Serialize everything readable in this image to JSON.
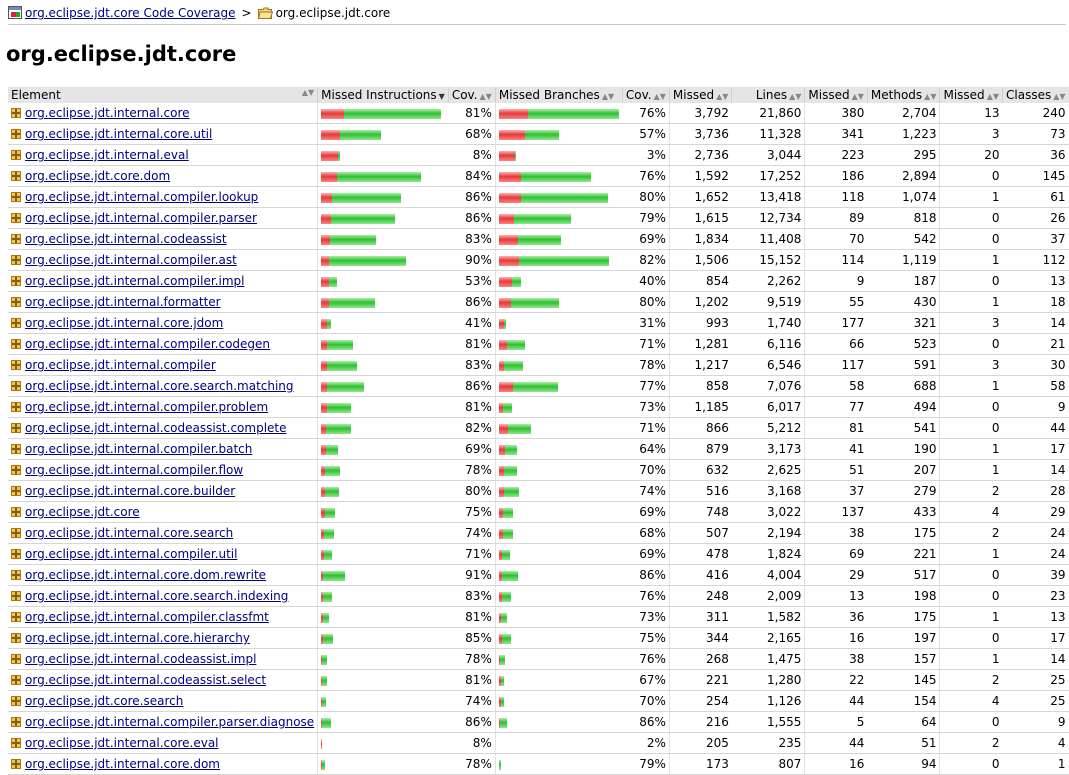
{
  "breadcrumb": {
    "root_label": "org.eclipse.jdt.core Code Coverage",
    "separator": ">",
    "current_label": "org.eclipse.jdt.core"
  },
  "page_title": "org.eclipse.jdt.core",
  "table": {
    "headers": {
      "element": "Element",
      "missed_instructions": "Missed Instructions",
      "instr_cov": "Cov.",
      "missed_branches": "Missed Branches",
      "branch_cov": "Cov.",
      "missed_lines": "Missed",
      "lines": "Lines",
      "missed_methods": "Missed",
      "methods": "Methods",
      "missed_classes": "Missed",
      "classes": "Classes"
    },
    "sort_icons": {
      "ascending_descending": "sort-icon",
      "active_descending": "sort-desc-icon"
    },
    "colors": {
      "missed": "#e23a3a",
      "covered": "#2fbf2f"
    },
    "rows": [
      {
        "name": "org.eclipse.jdt.internal.core",
        "instr_cov": "81%",
        "instr_cov_frac": 0.81,
        "instr_scale": 1.0,
        "branch_cov": "76%",
        "branch_cov_frac": 0.76,
        "branch_scale": 1.0,
        "missed_lines": "3,792",
        "lines": "21,860",
        "missed_methods": "380",
        "methods": "2,704",
        "missed_classes": "13",
        "classes": "240"
      },
      {
        "name": "org.eclipse.jdt.internal.core.util",
        "instr_cov": "68%",
        "instr_cov_frac": 0.68,
        "instr_scale": 0.5,
        "branch_cov": "57%",
        "branch_cov_frac": 0.57,
        "branch_scale": 0.5,
        "missed_lines": "3,736",
        "lines": "11,328",
        "missed_methods": "341",
        "methods": "1,223",
        "missed_classes": "3",
        "classes": "73"
      },
      {
        "name": "org.eclipse.jdt.internal.eval",
        "instr_cov": "8%",
        "instr_cov_frac": 0.08,
        "instr_scale": 0.16,
        "branch_cov": "3%",
        "branch_cov_frac": 0.03,
        "branch_scale": 0.14,
        "missed_lines": "2,736",
        "lines": "3,044",
        "missed_methods": "223",
        "methods": "295",
        "missed_classes": "20",
        "classes": "36"
      },
      {
        "name": "org.eclipse.jdt.core.dom",
        "instr_cov": "84%",
        "instr_cov_frac": 0.84,
        "instr_scale": 0.83,
        "branch_cov": "76%",
        "branch_cov_frac": 0.76,
        "branch_scale": 0.77,
        "missed_lines": "1,592",
        "lines": "17,252",
        "missed_methods": "186",
        "methods": "2,894",
        "missed_classes": "0",
        "classes": "145"
      },
      {
        "name": "org.eclipse.jdt.internal.compiler.lookup",
        "instr_cov": "86%",
        "instr_cov_frac": 0.86,
        "instr_scale": 0.67,
        "branch_cov": "80%",
        "branch_cov_frac": 0.8,
        "branch_scale": 0.91,
        "missed_lines": "1,652",
        "lines": "13,418",
        "missed_methods": "118",
        "methods": "1,074",
        "missed_classes": "1",
        "classes": "61"
      },
      {
        "name": "org.eclipse.jdt.internal.compiler.parser",
        "instr_cov": "86%",
        "instr_cov_frac": 0.86,
        "instr_scale": 0.62,
        "branch_cov": "79%",
        "branch_cov_frac": 0.79,
        "branch_scale": 0.6,
        "missed_lines": "1,615",
        "lines": "12,734",
        "missed_methods": "89",
        "methods": "818",
        "missed_classes": "0",
        "classes": "26"
      },
      {
        "name": "org.eclipse.jdt.internal.codeassist",
        "instr_cov": "83%",
        "instr_cov_frac": 0.83,
        "instr_scale": 0.46,
        "branch_cov": "69%",
        "branch_cov_frac": 0.69,
        "branch_scale": 0.52,
        "missed_lines": "1,834",
        "lines": "11,408",
        "missed_methods": "70",
        "methods": "542",
        "missed_classes": "0",
        "classes": "37"
      },
      {
        "name": "org.eclipse.jdt.internal.compiler.ast",
        "instr_cov": "90%",
        "instr_cov_frac": 0.9,
        "instr_scale": 0.71,
        "branch_cov": "82%",
        "branch_cov_frac": 0.82,
        "branch_scale": 0.92,
        "missed_lines": "1,506",
        "lines": "15,152",
        "missed_methods": "114",
        "methods": "1,119",
        "missed_classes": "1",
        "classes": "112"
      },
      {
        "name": "org.eclipse.jdt.internal.compiler.impl",
        "instr_cov": "53%",
        "instr_cov_frac": 0.53,
        "instr_scale": 0.13,
        "branch_cov": "40%",
        "branch_cov_frac": 0.4,
        "branch_scale": 0.18,
        "missed_lines": "854",
        "lines": "2,262",
        "missed_methods": "9",
        "methods": "187",
        "missed_classes": "0",
        "classes": "13"
      },
      {
        "name": "org.eclipse.jdt.internal.formatter",
        "instr_cov": "86%",
        "instr_cov_frac": 0.86,
        "instr_scale": 0.45,
        "branch_cov": "80%",
        "branch_cov_frac": 0.8,
        "branch_scale": 0.5,
        "missed_lines": "1,202",
        "lines": "9,519",
        "missed_methods": "55",
        "methods": "430",
        "missed_classes": "1",
        "classes": "18"
      },
      {
        "name": "org.eclipse.jdt.internal.core.jdom",
        "instr_cov": "41%",
        "instr_cov_frac": 0.41,
        "instr_scale": 0.08,
        "branch_cov": "31%",
        "branch_cov_frac": 0.31,
        "branch_scale": 0.06,
        "missed_lines": "993",
        "lines": "1,740",
        "missed_methods": "177",
        "methods": "321",
        "missed_classes": "3",
        "classes": "14"
      },
      {
        "name": "org.eclipse.jdt.internal.compiler.codegen",
        "instr_cov": "81%",
        "instr_cov_frac": 0.81,
        "instr_scale": 0.27,
        "branch_cov": "71%",
        "branch_cov_frac": 0.71,
        "branch_scale": 0.22,
        "missed_lines": "1,281",
        "lines": "6,116",
        "missed_methods": "66",
        "methods": "523",
        "missed_classes": "0",
        "classes": "21"
      },
      {
        "name": "org.eclipse.jdt.internal.compiler",
        "instr_cov": "83%",
        "instr_cov_frac": 0.83,
        "instr_scale": 0.3,
        "branch_cov": "78%",
        "branch_cov_frac": 0.78,
        "branch_scale": 0.2,
        "missed_lines": "1,217",
        "lines": "6,546",
        "missed_methods": "117",
        "methods": "591",
        "missed_classes": "3",
        "classes": "30"
      },
      {
        "name": "org.eclipse.jdt.internal.core.search.matching",
        "instr_cov": "86%",
        "instr_cov_frac": 0.86,
        "instr_scale": 0.36,
        "branch_cov": "77%",
        "branch_cov_frac": 0.77,
        "branch_scale": 0.49,
        "missed_lines": "858",
        "lines": "7,076",
        "missed_methods": "58",
        "methods": "688",
        "missed_classes": "1",
        "classes": "58"
      },
      {
        "name": "org.eclipse.jdt.internal.compiler.problem",
        "instr_cov": "81%",
        "instr_cov_frac": 0.81,
        "instr_scale": 0.25,
        "branch_cov": "73%",
        "branch_cov_frac": 0.73,
        "branch_scale": 0.11,
        "missed_lines": "1,185",
        "lines": "6,017",
        "missed_methods": "77",
        "methods": "494",
        "missed_classes": "0",
        "classes": "9"
      },
      {
        "name": "org.eclipse.jdt.internal.codeassist.complete",
        "instr_cov": "82%",
        "instr_cov_frac": 0.82,
        "instr_scale": 0.25,
        "branch_cov": "71%",
        "branch_cov_frac": 0.71,
        "branch_scale": 0.27,
        "missed_lines": "866",
        "lines": "5,212",
        "missed_methods": "81",
        "methods": "541",
        "missed_classes": "0",
        "classes": "44"
      },
      {
        "name": "org.eclipse.jdt.internal.compiler.batch",
        "instr_cov": "69%",
        "instr_cov_frac": 0.69,
        "instr_scale": 0.14,
        "branch_cov": "64%",
        "branch_cov_frac": 0.64,
        "branch_scale": 0.15,
        "missed_lines": "879",
        "lines": "3,173",
        "missed_methods": "41",
        "methods": "190",
        "missed_classes": "1",
        "classes": "17"
      },
      {
        "name": "org.eclipse.jdt.internal.compiler.flow",
        "instr_cov": "78%",
        "instr_cov_frac": 0.78,
        "instr_scale": 0.16,
        "branch_cov": "70%",
        "branch_cov_frac": 0.7,
        "branch_scale": 0.15,
        "missed_lines": "632",
        "lines": "2,625",
        "missed_methods": "51",
        "methods": "207",
        "missed_classes": "1",
        "classes": "14"
      },
      {
        "name": "org.eclipse.jdt.internal.core.builder",
        "instr_cov": "80%",
        "instr_cov_frac": 0.8,
        "instr_scale": 0.15,
        "branch_cov": "74%",
        "branch_cov_frac": 0.74,
        "branch_scale": 0.17,
        "missed_lines": "516",
        "lines": "3,168",
        "missed_methods": "37",
        "methods": "279",
        "missed_classes": "2",
        "classes": "28"
      },
      {
        "name": "org.eclipse.jdt.core",
        "instr_cov": "75%",
        "instr_cov_frac": 0.75,
        "instr_scale": 0.12,
        "branch_cov": "69%",
        "branch_cov_frac": 0.69,
        "branch_scale": 0.12,
        "missed_lines": "748",
        "lines": "3,022",
        "missed_methods": "137",
        "methods": "433",
        "missed_classes": "4",
        "classes": "29"
      },
      {
        "name": "org.eclipse.jdt.internal.core.search",
        "instr_cov": "74%",
        "instr_cov_frac": 0.74,
        "instr_scale": 0.11,
        "branch_cov": "68%",
        "branch_cov_frac": 0.68,
        "branch_scale": 0.12,
        "missed_lines": "507",
        "lines": "2,194",
        "missed_methods": "38",
        "methods": "175",
        "missed_classes": "2",
        "classes": "24"
      },
      {
        "name": "org.eclipse.jdt.internal.compiler.util",
        "instr_cov": "71%",
        "instr_cov_frac": 0.71,
        "instr_scale": 0.09,
        "branch_cov": "69%",
        "branch_cov_frac": 0.69,
        "branch_scale": 0.09,
        "missed_lines": "478",
        "lines": "1,824",
        "missed_methods": "69",
        "methods": "221",
        "missed_classes": "1",
        "classes": "24"
      },
      {
        "name": "org.eclipse.jdt.internal.core.dom.rewrite",
        "instr_cov": "91%",
        "instr_cov_frac": 0.91,
        "instr_scale": 0.2,
        "branch_cov": "86%",
        "branch_cov_frac": 0.86,
        "branch_scale": 0.16,
        "missed_lines": "416",
        "lines": "4,004",
        "missed_methods": "29",
        "methods": "517",
        "missed_classes": "0",
        "classes": "39"
      },
      {
        "name": "org.eclipse.jdt.internal.core.search.indexing",
        "instr_cov": "83%",
        "instr_cov_frac": 0.83,
        "instr_scale": 0.09,
        "branch_cov": "76%",
        "branch_cov_frac": 0.76,
        "branch_scale": 0.1,
        "missed_lines": "248",
        "lines": "2,009",
        "missed_methods": "13",
        "methods": "198",
        "missed_classes": "0",
        "classes": "23"
      },
      {
        "name": "org.eclipse.jdt.internal.compiler.classfmt",
        "instr_cov": "81%",
        "instr_cov_frac": 0.81,
        "instr_scale": 0.07,
        "branch_cov": "73%",
        "branch_cov_frac": 0.73,
        "branch_scale": 0.07,
        "missed_lines": "311",
        "lines": "1,582",
        "missed_methods": "36",
        "methods": "175",
        "missed_classes": "1",
        "classes": "13"
      },
      {
        "name": "org.eclipse.jdt.internal.core.hierarchy",
        "instr_cov": "85%",
        "instr_cov_frac": 0.85,
        "instr_scale": 0.1,
        "branch_cov": "75%",
        "branch_cov_frac": 0.75,
        "branch_scale": 0.1,
        "missed_lines": "344",
        "lines": "2,165",
        "missed_methods": "16",
        "methods": "197",
        "missed_classes": "0",
        "classes": "17"
      },
      {
        "name": "org.eclipse.jdt.internal.codeassist.impl",
        "instr_cov": "78%",
        "instr_cov_frac": 0.78,
        "instr_scale": 0.05,
        "branch_cov": "76%",
        "branch_cov_frac": 0.76,
        "branch_scale": 0.05,
        "missed_lines": "268",
        "lines": "1,475",
        "missed_methods": "38",
        "methods": "157",
        "missed_classes": "1",
        "classes": "14"
      },
      {
        "name": "org.eclipse.jdt.internal.codeassist.select",
        "instr_cov": "81%",
        "instr_cov_frac": 0.81,
        "instr_scale": 0.05,
        "branch_cov": "67%",
        "branch_cov_frac": 0.67,
        "branch_scale": 0.04,
        "missed_lines": "221",
        "lines": "1,280",
        "missed_methods": "22",
        "methods": "145",
        "missed_classes": "2",
        "classes": "25"
      },
      {
        "name": "org.eclipse.jdt.core.search",
        "instr_cov": "74%",
        "instr_cov_frac": 0.74,
        "instr_scale": 0.04,
        "branch_cov": "70%",
        "branch_cov_frac": 0.7,
        "branch_scale": 0.04,
        "missed_lines": "254",
        "lines": "1,126",
        "missed_methods": "44",
        "methods": "154",
        "missed_classes": "4",
        "classes": "25"
      },
      {
        "name": "org.eclipse.jdt.internal.compiler.parser.diagnose",
        "instr_cov": "86%",
        "instr_cov_frac": 0.86,
        "instr_scale": 0.08,
        "branch_cov": "86%",
        "branch_cov_frac": 0.86,
        "branch_scale": 0.07,
        "missed_lines": "216",
        "lines": "1,555",
        "missed_methods": "5",
        "methods": "64",
        "missed_classes": "0",
        "classes": "9"
      },
      {
        "name": "org.eclipse.jdt.internal.core.eval",
        "instr_cov": "8%",
        "instr_cov_frac": 0.08,
        "instr_scale": 0.01,
        "branch_cov": "2%",
        "branch_cov_frac": 0.02,
        "branch_scale": 0.0,
        "missed_lines": "205",
        "lines": "235",
        "missed_methods": "44",
        "methods": "51",
        "missed_classes": "2",
        "classes": "4"
      },
      {
        "name": "org.eclipse.jdt.internal.core.dom",
        "instr_cov": "78%",
        "instr_cov_frac": 0.78,
        "instr_scale": 0.03,
        "branch_cov": "79%",
        "branch_cov_frac": 0.79,
        "branch_scale": 0.02,
        "missed_lines": "173",
        "lines": "807",
        "missed_methods": "16",
        "methods": "94",
        "missed_classes": "0",
        "classes": "1"
      }
    ]
  }
}
